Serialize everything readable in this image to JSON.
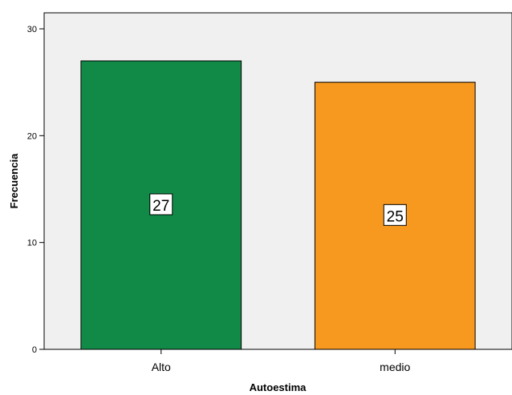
{
  "chart_data": {
    "type": "bar",
    "categories": [
      "Alto",
      "medio"
    ],
    "values": [
      27,
      25
    ],
    "data_labels": [
      "27",
      "25"
    ],
    "colors": [
      "#118a47",
      "#f7991f"
    ],
    "xlabel": "Autoestima",
    "ylabel": "Frecuencia",
    "ylim": [
      0,
      30
    ],
    "yticks": [
      "0",
      "10",
      "20",
      "30"
    ],
    "ytick_values": [
      0,
      10,
      20,
      30
    ],
    "grid": false,
    "plot_background": "#f0f0f0"
  }
}
